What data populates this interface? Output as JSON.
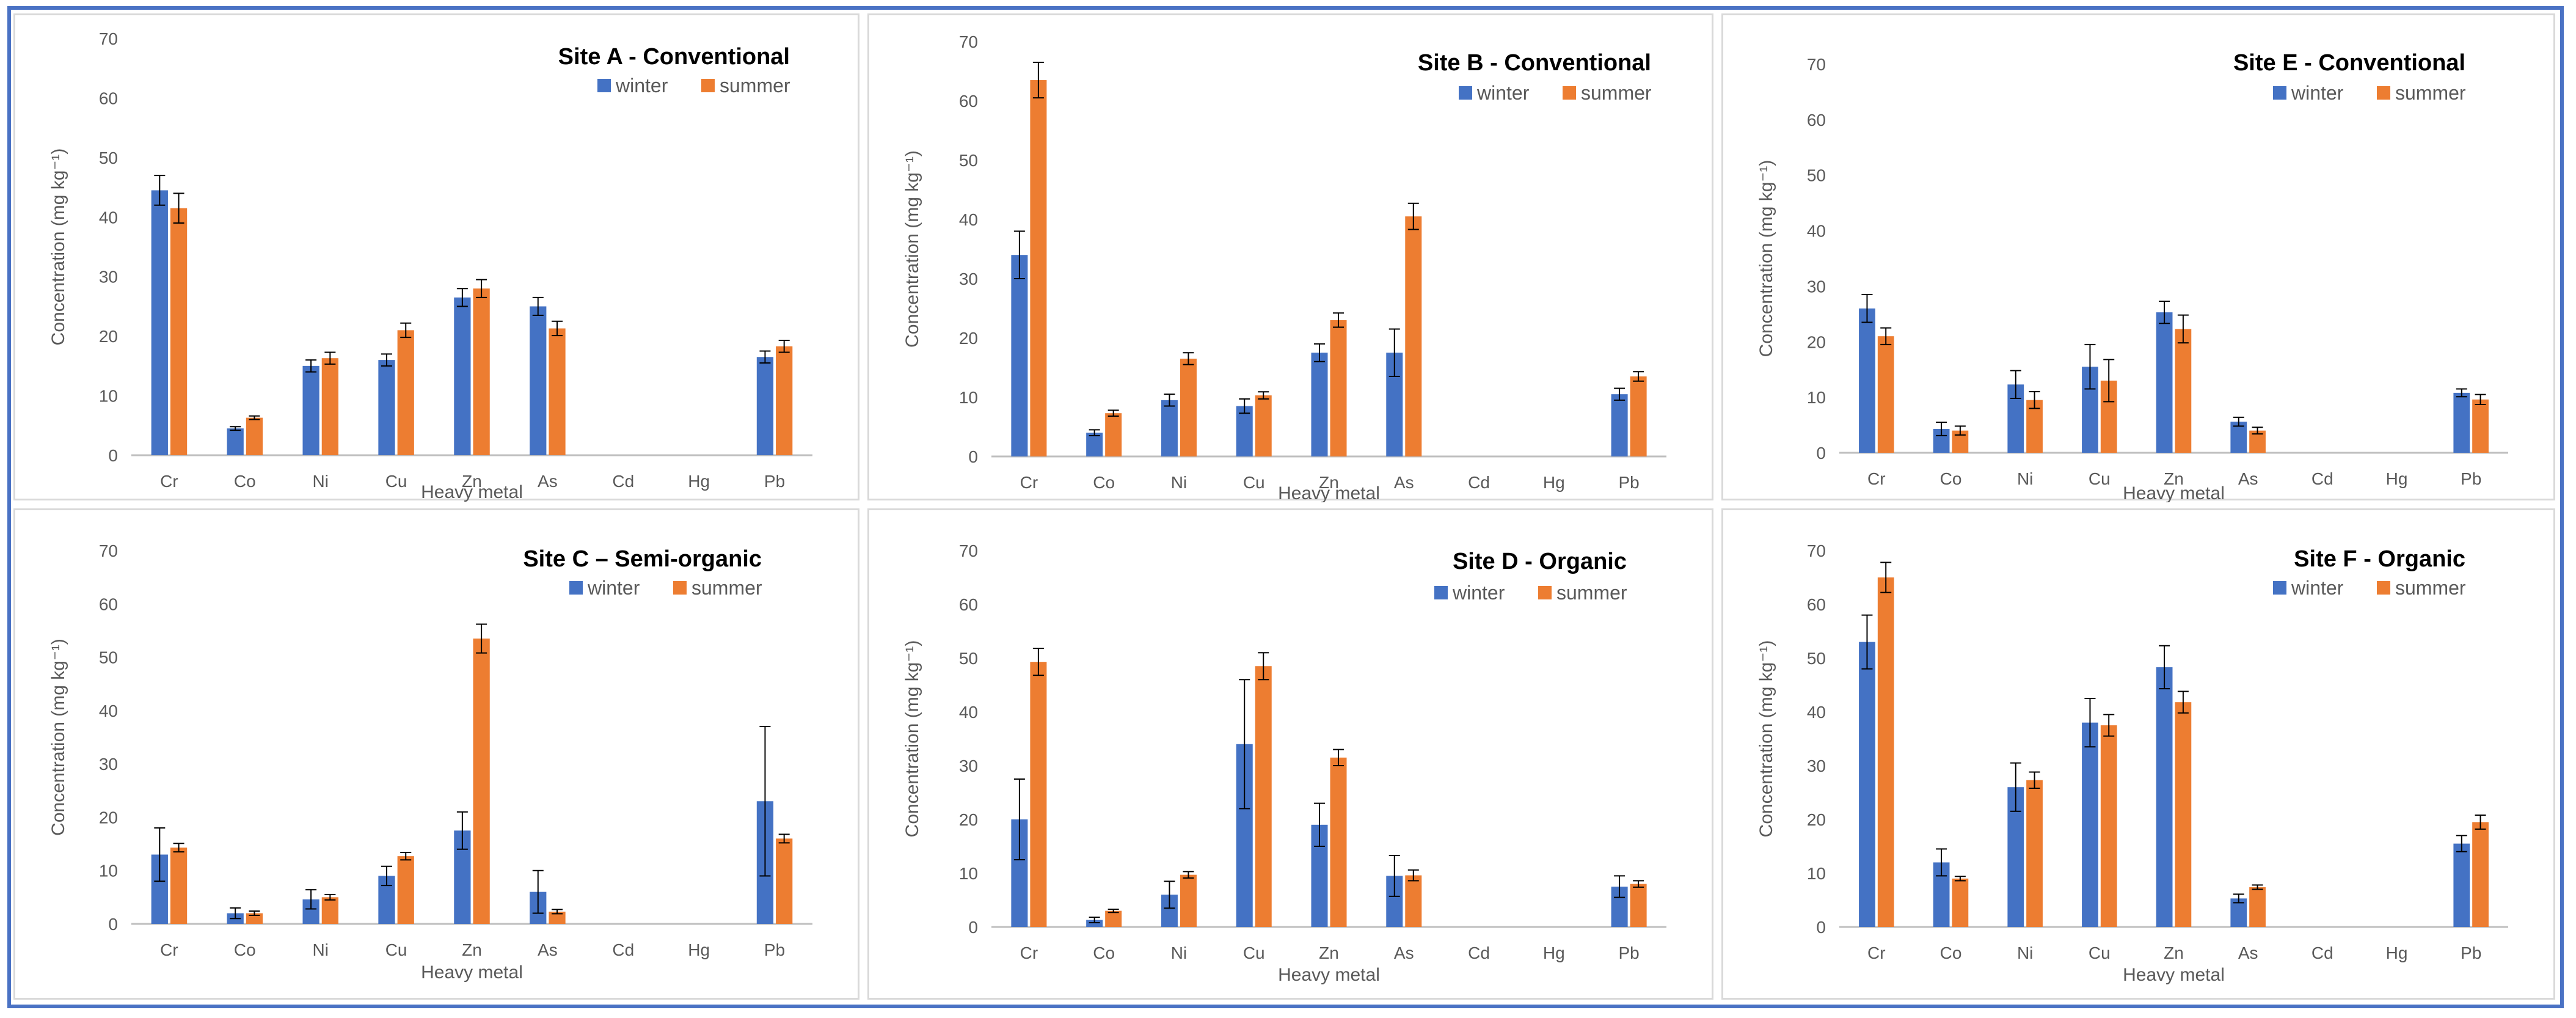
{
  "colors": {
    "winter": "#4472c4",
    "summer": "#ed7d31",
    "axis": "#bfbfbf",
    "text": "#595959",
    "frame": "#4a72c4"
  },
  "chart_data": [
    {
      "type": "bar",
      "title": "Site A - Conventional",
      "xlabel": "Heavy metal",
      "ylabel": "Concentration (mg kg⁻¹)",
      "ylim": [
        0,
        70
      ],
      "yticks": [
        "0",
        "10",
        "20",
        "30",
        "40",
        "50",
        "60",
        "70"
      ],
      "categories": [
        "Cr",
        "Co",
        "Ni",
        "Cu",
        "Zn",
        "As",
        "Cd",
        "Hg",
        "Pb"
      ],
      "legend_position": "top-right",
      "series": [
        {
          "name": "winter",
          "values": [
            44.5,
            4.5,
            15,
            16,
            26.5,
            25,
            0,
            0,
            16.5
          ],
          "errors": [
            2.5,
            0.3,
            1,
            1,
            1.5,
            1.5,
            0,
            0,
            1
          ]
        },
        {
          "name": "summer",
          "values": [
            41.5,
            6.3,
            16.3,
            21,
            28,
            21.3,
            0,
            0,
            18.3
          ],
          "errors": [
            2.5,
            0.3,
            1,
            1.2,
            1.5,
            1.2,
            0,
            0,
            1
          ]
        }
      ]
    },
    {
      "type": "bar",
      "title": "Site B - Conventional",
      "xlabel": "Heavy metal",
      "ylabel": "Concentration (mg kg⁻¹)",
      "ylim": [
        0,
        70
      ],
      "yticks": [
        "0",
        "10",
        "20",
        "30",
        "40",
        "50",
        "60",
        "70"
      ],
      "categories": [
        "Cr",
        "Co",
        "Ni",
        "Cu",
        "Zn",
        "As",
        "Cd",
        "Hg",
        "Pb"
      ],
      "legend_position": "top-right",
      "series": [
        {
          "name": "winter",
          "values": [
            34,
            4,
            9.5,
            8.5,
            17.5,
            17.5,
            0,
            0,
            10.5
          ],
          "errors": [
            4,
            0.5,
            1,
            1.2,
            1.5,
            4,
            0,
            0,
            1
          ]
        },
        {
          "name": "summer",
          "values": [
            63.5,
            7.3,
            16.5,
            10.3,
            23,
            40.5,
            0,
            0,
            13.5
          ],
          "errors": [
            3,
            0.5,
            1,
            0.6,
            1.2,
            2.2,
            0,
            0,
            0.8
          ]
        }
      ]
    },
    {
      "type": "bar",
      "title": "Site E - Conventional",
      "xlabel": "Heavy metal",
      "ylabel": "Concentration (mg kg⁻¹)",
      "ylim": [
        0,
        70
      ],
      "yticks": [
        "0",
        "10",
        "20",
        "30",
        "40",
        "50",
        "60",
        "70"
      ],
      "categories": [
        "Cr",
        "Co",
        "Ni",
        "Cu",
        "Zn",
        "As",
        "Cd",
        "Hg",
        "Pb"
      ],
      "legend_position": "top-right",
      "series": [
        {
          "name": "winter",
          "values": [
            26,
            4.3,
            12.3,
            15.5,
            25.3,
            5.6,
            0,
            0,
            10.8
          ],
          "errors": [
            2.5,
            1.2,
            2.5,
            4,
            2,
            0.8,
            0,
            0,
            0.7
          ]
        },
        {
          "name": "summer",
          "values": [
            21,
            4,
            9.5,
            13,
            22.3,
            4,
            0,
            0,
            9.6
          ],
          "errors": [
            1.5,
            0.8,
            1.5,
            3.8,
            2.5,
            0.6,
            0,
            0,
            0.9
          ]
        }
      ]
    },
    {
      "type": "bar",
      "title": "Site C – Semi-organic",
      "xlabel": "Heavy metal",
      "ylabel": "Concentration (mg kg⁻¹)",
      "ylim": [
        0,
        70
      ],
      "yticks": [
        "0",
        "10",
        "20",
        "30",
        "40",
        "50",
        "60",
        "70"
      ],
      "categories": [
        "Cr",
        "Co",
        "Ni",
        "Cu",
        "Zn",
        "As",
        "Cd",
        "Hg",
        "Pb"
      ],
      "legend_position": "top-right",
      "series": [
        {
          "name": "winter",
          "values": [
            13,
            2,
            4.6,
            9,
            17.5,
            6,
            0,
            0,
            23
          ],
          "errors": [
            5,
            1,
            1.8,
            1.8,
            3.5,
            4,
            0,
            0,
            14
          ]
        },
        {
          "name": "summer",
          "values": [
            14.3,
            2,
            5,
            12.7,
            53.5,
            2.3,
            0,
            0,
            16
          ],
          "errors": [
            0.8,
            0.4,
            0.5,
            0.7,
            2.7,
            0.4,
            0,
            0,
            0.8
          ]
        }
      ]
    },
    {
      "type": "bar",
      "title": "Site D - Organic",
      "xlabel": "Heavy metal",
      "ylabel": "Concentration (mg kg⁻¹)",
      "ylim": [
        0,
        70
      ],
      "yticks": [
        "0",
        "10",
        "20",
        "30",
        "40",
        "50",
        "60",
        "70"
      ],
      "categories": [
        "Cr",
        "Co",
        "Ni",
        "Cu",
        "Zn",
        "As",
        "Cd",
        "Hg",
        "Pb"
      ],
      "legend_position": "top-right",
      "series": [
        {
          "name": "winter",
          "values": [
            20,
            1.3,
            6,
            34,
            19,
            9.5,
            0,
            0,
            7.5
          ],
          "errors": [
            7.5,
            0.5,
            2.5,
            12,
            4,
            3.8,
            0,
            0,
            2
          ]
        },
        {
          "name": "summer",
          "values": [
            49.3,
            3,
            9.7,
            48.5,
            31.5,
            9.6,
            0,
            0,
            8
          ],
          "errors": [
            2.5,
            0.3,
            0.6,
            2.5,
            1.5,
            1,
            0,
            0,
            0.6
          ]
        }
      ]
    },
    {
      "type": "bar",
      "title": "Site F - Organic",
      "xlabel": "Heavy metal",
      "ylabel": "Concentration (mg kg⁻¹)",
      "ylim": [
        0,
        70
      ],
      "yticks": [
        "0",
        "10",
        "20",
        "30",
        "40",
        "50",
        "60",
        "70"
      ],
      "categories": [
        "Cr",
        "Co",
        "Ni",
        "Cu",
        "Zn",
        "As",
        "Cd",
        "Hg",
        "Pb"
      ],
      "legend_position": "top-right",
      "series": [
        {
          "name": "winter",
          "values": [
            53,
            12,
            26,
            38,
            48.3,
            5.3,
            0,
            0,
            15.5
          ],
          "errors": [
            5,
            2.5,
            4.5,
            4.5,
            4,
            0.8,
            0,
            0,
            1.5
          ]
        },
        {
          "name": "summer",
          "values": [
            65,
            9,
            27.3,
            37.5,
            41.8,
            7.4,
            0,
            0,
            19.5
          ],
          "errors": [
            2.8,
            0.4,
            1.5,
            2,
            2,
            0.4,
            0,
            0,
            1.3
          ]
        }
      ]
    }
  ]
}
